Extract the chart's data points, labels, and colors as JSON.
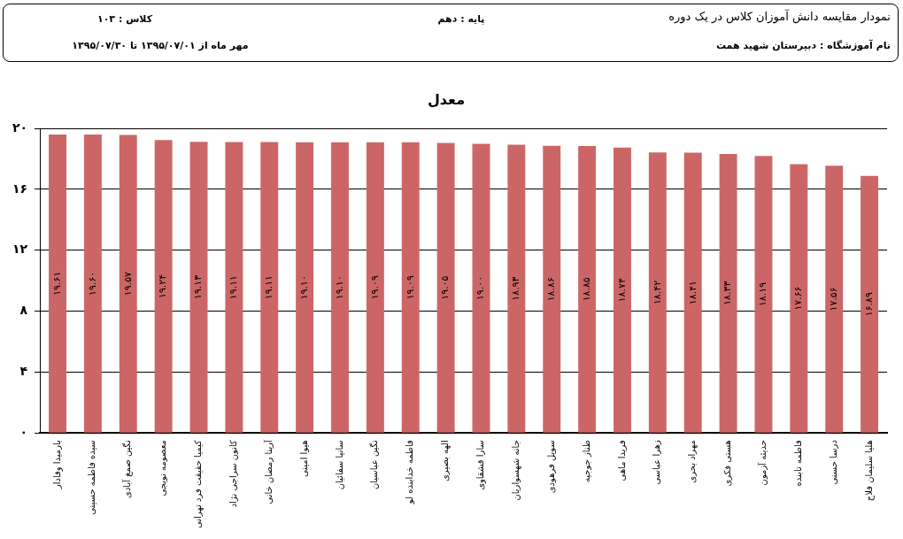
{
  "chart_data": {
    "type": "bar",
    "title": "معدل",
    "annotations": [
      "نمودار مقایسه دانش آموزان کلاس  در یک دوره",
      "پایه :  دهم",
      "کلاس : ۱۰۳",
      "نام آموزشگاه :  دبیرستان شهید همت",
      "مهر ماه از ۱۳۹۵/۰۷/۰۱ تا ۱۳۹۵/۰۷/۳۰"
    ],
    "categories": [
      "بارمیدا وفادار",
      "سیده فاطمه حسینی",
      "نگین صمغ آبادی",
      "معصومه نوبجی",
      "کیمیا حقیقت فرد تهرانی",
      "کانون سراجی نژاد",
      "آرینا رمضان خانی",
      "هیوا امینی",
      "سانیا سفائیان",
      "نگین عباسیان",
      "فاطمه خدابنده لو",
      "الهه بصیری",
      "سارا قشقاوی",
      "جانه شهسواریان",
      "سویل فرهودی",
      "طناز جوجیه",
      "فریدا ماهی",
      "زهرا عباسی",
      "مهراد بحری",
      "هستی فکری",
      "حدیثه آزمون",
      "فاطمه تابنده",
      "درسا حسنی",
      "هلیا سلیمان فلاح"
    ],
    "values": [
      19.61,
      19.6,
      19.57,
      19.24,
      19.13,
      19.11,
      19.11,
      19.1,
      19.1,
      19.09,
      19.09,
      19.05,
      19.0,
      18.93,
      18.86,
      18.85,
      18.74,
      18.42,
      18.41,
      18.33,
      18.19,
      17.66,
      17.56,
      16.89
    ],
    "value_labels": [
      "۱۹.۶۱",
      "۱۹.۶۰",
      "۱۹.۵۷",
      "۱۹.۲۴",
      "۱۹.۱۳",
      "۱۹.۱۱",
      "۱۹.۱۱",
      "۱۹.۱۰",
      "۱۹.۱۰",
      "۱۹.۰۹",
      "۱۹.۰۹",
      "۱۹.۰۵",
      "۱۹.۰۰",
      "۱۸.۹۳",
      "۱۸.۸۶",
      "۱۸.۸۵",
      "۱۸.۷۴",
      "۱۸.۴۲",
      "۱۸.۴۱",
      "۱۸.۳۳",
      "۱۸.۱۹",
      "۱۷.۶۶",
      "۱۷.۵۶",
      "۱۶.۸۹"
    ],
    "color": "#cc6666",
    "ylim": [
      0,
      20
    ],
    "yticks": [
      {
        "value": 0,
        "label": "۰"
      },
      {
        "value": 4,
        "label": "۴"
      },
      {
        "value": 8,
        "label": "۸"
      },
      {
        "value": 12,
        "label": "۱۲"
      },
      {
        "value": 16,
        "label": "۱۶"
      },
      {
        "value": 20,
        "label": "۲۰"
      }
    ],
    "grid": "y",
    "legend": false
  }
}
